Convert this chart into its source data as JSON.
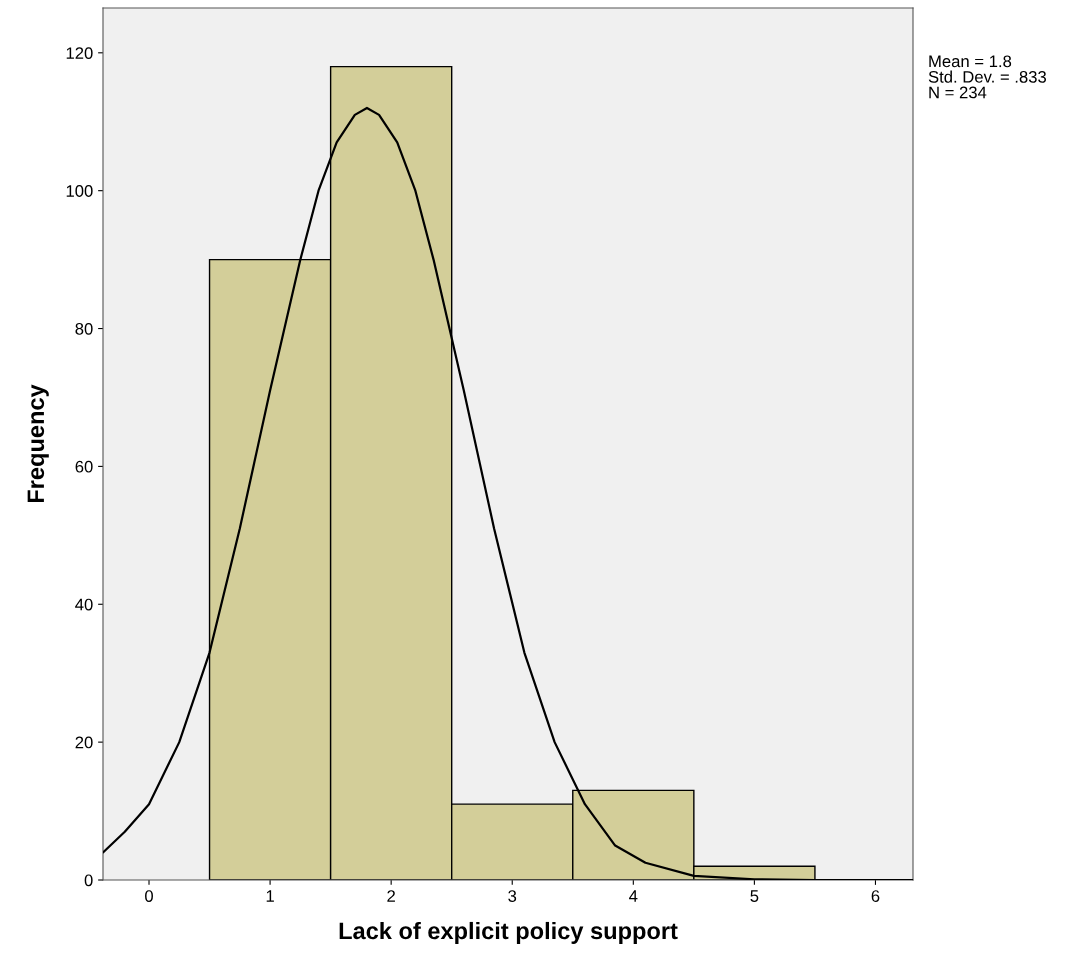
{
  "chart_data": {
    "type": "histogram",
    "xlabel": "Lack of explicit policy support",
    "ylabel": "Frequency",
    "bins": [
      0.5,
      1.5,
      2.5,
      3.5,
      4.5,
      5.5
    ],
    "series": [
      {
        "color": "#d3ce99",
        "values": [
          90,
          118,
          11,
          13,
          2
        ]
      },
      {
        "type": "line",
        "color": "#000000",
        "x": [
          -0.38,
          -0.2,
          0,
          0.25,
          0.5,
          0.75,
          1.0,
          1.25,
          1.4,
          1.55,
          1.7,
          1.8,
          1.9,
          2.05,
          2.2,
          2.35,
          2.6,
          2.85,
          3.1,
          3.35,
          3.6,
          3.85,
          4.1,
          4.5,
          5.0,
          5.5,
          6.31
        ],
        "values": [
          4,
          7,
          11,
          20,
          33,
          51,
          71,
          90,
          100,
          107,
          111,
          112,
          111,
          107,
          100,
          90,
          71,
          51,
          33,
          20,
          11,
          5,
          2.5,
          0.6,
          0.1,
          0,
          0
        ]
      }
    ],
    "xlim": [
      -0.38,
      6.31
    ],
    "ylim": [
      0,
      126.5
    ],
    "xticks": [
      0,
      1,
      2,
      3,
      4,
      5,
      6
    ],
    "yticks": [
      0,
      20,
      40,
      60,
      80,
      100,
      120
    ],
    "grid": false,
    "annotations": [
      "Mean = 1.8",
      "Std. Dev. = .833",
      "N = 234"
    ]
  }
}
